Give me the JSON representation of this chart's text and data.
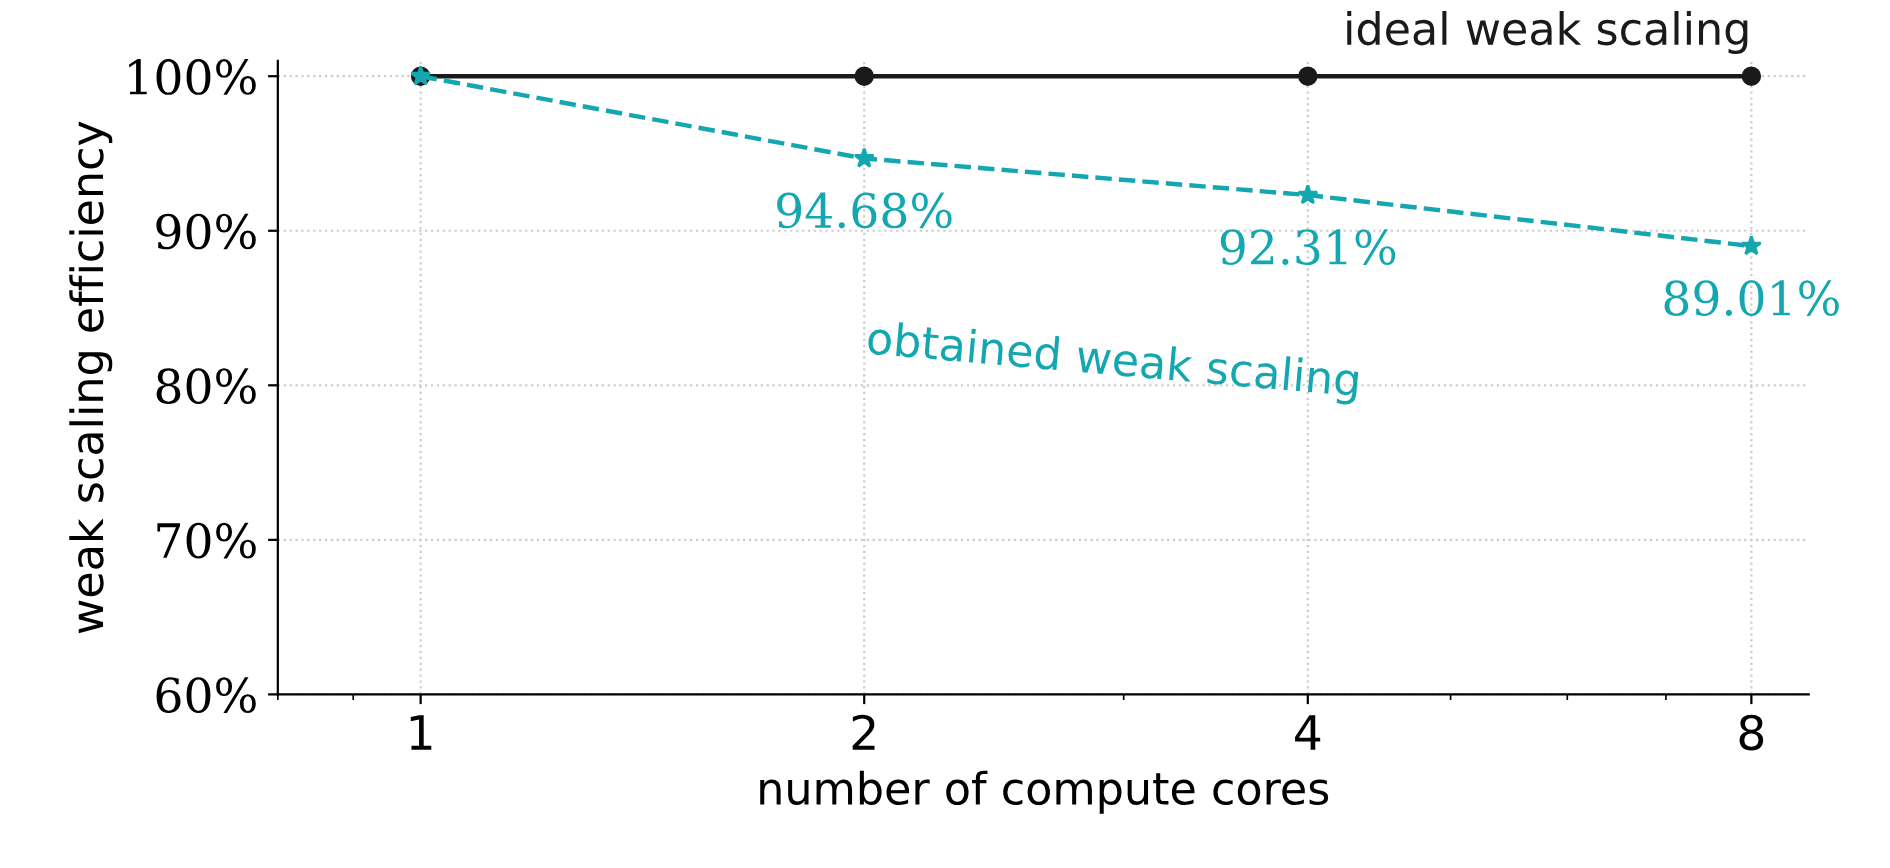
{
  "chart_data": {
    "type": "line",
    "xlabel": "number of compute cores",
    "ylabel": "weak scaling efficiency",
    "x": [
      1,
      2,
      4,
      8
    ],
    "series": [
      {
        "name": "ideal weak scaling",
        "color": "#1a1a1a",
        "values": [
          100,
          100,
          100,
          100
        ],
        "marker": "circle",
        "line_style": "solid"
      },
      {
        "name": "obtained weak scaling",
        "color": "#14a7b0",
        "values": [
          100,
          94.68,
          92.31,
          89.01
        ],
        "marker": "star",
        "line_style": "dashed",
        "value_labels": [
          null,
          "94.68%",
          "92.31%",
          "89.01%"
        ]
      }
    ],
    "log": "x",
    "xlim": [
      0.8,
      8.75
    ],
    "xticks": [
      1,
      2,
      4,
      8
    ],
    "ylim": [
      60,
      101
    ],
    "yticks": [
      {
        "value": 60,
        "label": "60%"
      },
      {
        "value": 70,
        "label": "70%"
      },
      {
        "value": 80,
        "label": "80%"
      },
      {
        "value": 90,
        "label": "90%"
      },
      {
        "value": 100,
        "label": "100%"
      }
    ],
    "grid": true,
    "legend": false
  }
}
